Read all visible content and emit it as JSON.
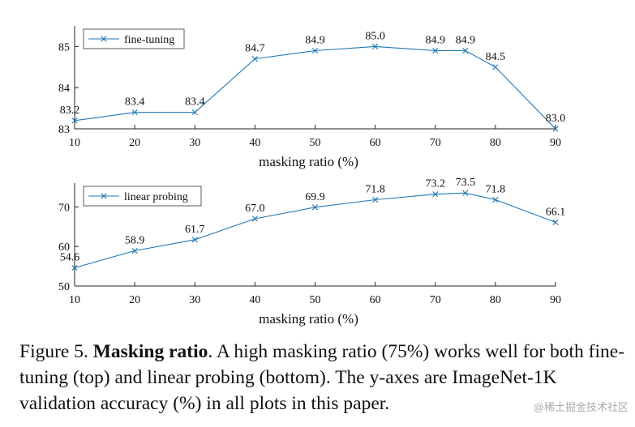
{
  "chart_data": [
    {
      "type": "line",
      "x": [
        10,
        20,
        30,
        40,
        50,
        60,
        70,
        75,
        80,
        90
      ],
      "series": [
        {
          "name": "fine-tuning",
          "values": [
            83.2,
            83.4,
            83.4,
            84.7,
            84.9,
            85.0,
            84.9,
            84.9,
            84.5,
            83.0
          ],
          "value_labels": [
            "83.2",
            "83.4",
            "83.4",
            "84.7",
            "84.9",
            "85.0",
            "84.9",
            "84.9",
            "84.5",
            "83.0"
          ],
          "color": "#1f77b4",
          "marker": "x"
        }
      ],
      "xlabel": "masking ratio (%)",
      "ylabel": "",
      "xticks": [
        "10",
        "20",
        "30",
        "40",
        "50",
        "60",
        "70",
        "80",
        "90"
      ],
      "yticks": [
        "83",
        "84",
        "85"
      ],
      "xlim": [
        10,
        90
      ],
      "ylim": [
        83,
        85.5
      ],
      "grid": false,
      "legend_position": "top-left"
    },
    {
      "type": "line",
      "x": [
        10,
        20,
        30,
        40,
        50,
        60,
        70,
        75,
        80,
        90
      ],
      "series": [
        {
          "name": "linear probing",
          "values": [
            54.6,
            58.9,
            61.7,
            67.0,
            69.9,
            71.8,
            73.2,
            73.5,
            71.8,
            66.1
          ],
          "value_labels": [
            "54.6",
            "58.9",
            "61.7",
            "67.0",
            "69.9",
            "71.8",
            "73.2",
            "73.5",
            "71.8",
            "66.1"
          ],
          "color": "#1f77b4",
          "marker": "x"
        }
      ],
      "xlabel": "masking ratio (%)",
      "ylabel": "",
      "xticks": [
        "10",
        "20",
        "30",
        "40",
        "50",
        "60",
        "70",
        "80",
        "90"
      ],
      "yticks": [
        "50",
        "60",
        "70"
      ],
      "xlim": [
        10,
        90
      ],
      "ylim": [
        50,
        76
      ],
      "grid": false,
      "legend_position": "top-left"
    }
  ],
  "caption": {
    "prefix": "Figure 5.",
    "bold": "Masking ratio",
    "text": ". A high masking ratio (75%) works well for both fine-tuning (top) and linear probing (bottom). The y-axes are ImageNet-1K validation accuracy (%) in all plots in this paper."
  },
  "watermark": "@稀土掘金技术社区"
}
